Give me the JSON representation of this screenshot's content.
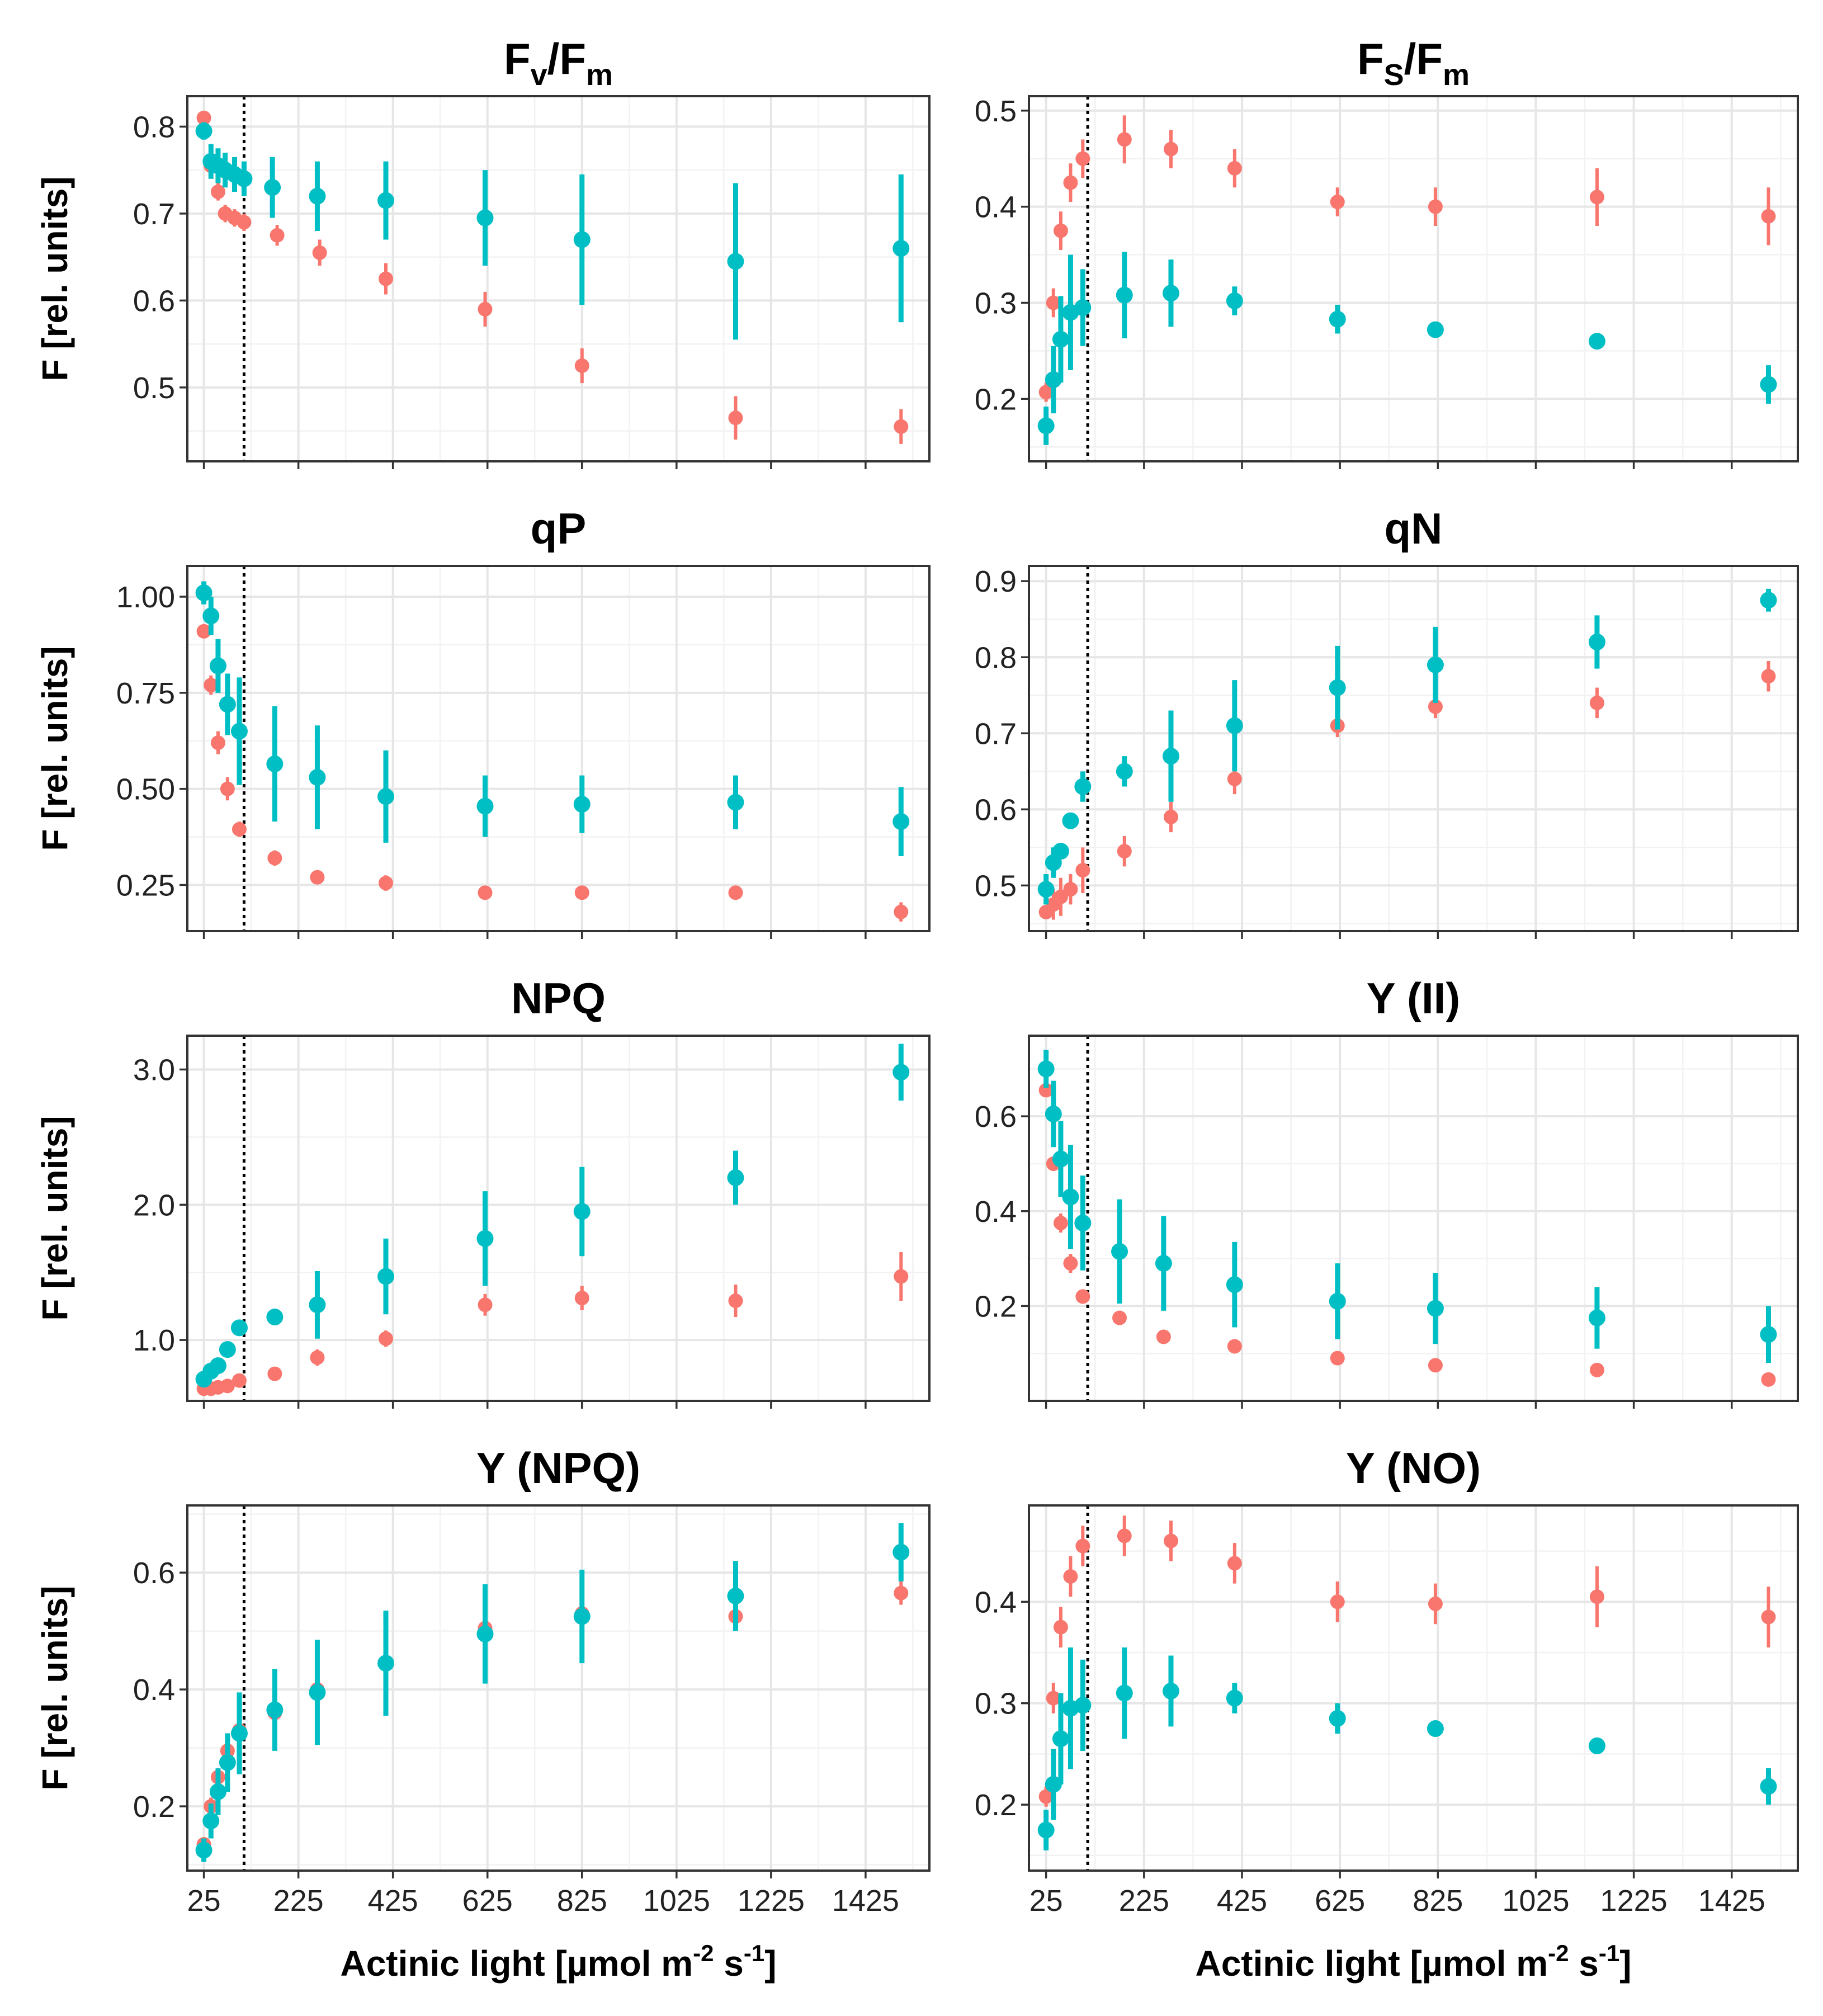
{
  "figure": {
    "ylabel": "F [rel. units]",
    "xlabel": "Actinic light [µmol m",
    "xlabel_sup1": "-2",
    "xlabel_mid": " s",
    "xlabel_sup2": "-1",
    "xlabel_end": "]",
    "x_ticks": [
      "25",
      "225",
      "425",
      "625",
      "825",
      "1025",
      "1225",
      "1425"
    ],
    "colors": {
      "series_a": "#F8766D",
      "series_b": "#00BFC4",
      "vline": "#000000"
    }
  },
  "chart_data": [
    {
      "type": "scatter",
      "title": "Fv/Fm",
      "title_main": "F",
      "title_sub1": "v",
      "title_mid": "/F",
      "title_sub2": "m",
      "xlim": [
        -10,
        1560
      ],
      "ylim": [
        0.415,
        0.835
      ],
      "yticks": [
        0.5,
        0.6,
        0.7,
        0.8
      ],
      "ytick_labels": [
        "0.5",
        "0.6",
        "0.7",
        "0.8"
      ],
      "vline": 110,
      "series": [
        {
          "color": "#F8766D",
          "x": [
            25,
            40,
            55,
            70,
            90,
            110,
            180,
            270,
            410,
            620,
            825,
            1150,
            1500
          ],
          "y": [
            0.81,
            0.755,
            0.725,
            0.7,
            0.695,
            0.69,
            0.675,
            0.655,
            0.625,
            0.59,
            0.525,
            0.465,
            0.455
          ],
          "err": [
            0.008,
            0.01,
            0.01,
            0.01,
            0.01,
            0.01,
            0.012,
            0.015,
            0.018,
            0.02,
            0.02,
            0.025,
            0.02
          ]
        },
        {
          "color": "#00BFC4",
          "x": [
            25,
            40,
            55,
            70,
            90,
            110,
            170,
            265,
            410,
            620,
            825,
            1150,
            1500
          ],
          "y": [
            0.795,
            0.76,
            0.755,
            0.75,
            0.745,
            0.74,
            0.73,
            0.72,
            0.715,
            0.695,
            0.67,
            0.645,
            0.66
          ],
          "err": [
            0.01,
            0.02,
            0.02,
            0.02,
            0.02,
            0.02,
            0.035,
            0.04,
            0.045,
            0.055,
            0.075,
            0.09,
            0.085
          ]
        }
      ]
    },
    {
      "type": "scatter",
      "title": "Fs/Fm",
      "title_main": "F",
      "title_sub1": "S",
      "title_mid": "/F",
      "title_sub2": "m",
      "xlim": [
        -10,
        1560
      ],
      "ylim": [
        0.135,
        0.515
      ],
      "yticks": [
        0.2,
        0.3,
        0.4,
        0.5
      ],
      "ytick_labels": [
        "0.2",
        "0.3",
        "0.4",
        "0.5"
      ],
      "vline": 110,
      "series": [
        {
          "color": "#F8766D",
          "x": [
            25,
            40,
            55,
            75,
            100,
            185,
            280,
            410,
            620,
            820,
            1150,
            1500
          ],
          "y": [
            0.207,
            0.3,
            0.375,
            0.425,
            0.45,
            0.47,
            0.46,
            0.44,
            0.405,
            0.4,
            0.41,
            0.39
          ],
          "err": [
            0.01,
            0.015,
            0.02,
            0.02,
            0.02,
            0.025,
            0.02,
            0.02,
            0.015,
            0.02,
            0.03,
            0.03
          ]
        },
        {
          "color": "#00BFC4",
          "x": [
            25,
            40,
            55,
            75,
            100,
            185,
            280,
            410,
            620,
            820,
            1150,
            1500
          ],
          "y": [
            0.172,
            0.22,
            0.262,
            0.29,
            0.295,
            0.308,
            0.31,
            0.302,
            0.283,
            0.272,
            0.26,
            0.215
          ],
          "err": [
            0.02,
            0.035,
            0.045,
            0.06,
            0.04,
            0.045,
            0.035,
            0.015,
            0.015,
            0.008,
            0.008,
            0.02
          ]
        }
      ]
    },
    {
      "type": "scatter",
      "title": "qP",
      "xlim": [
        -10,
        1560
      ],
      "ylim": [
        0.13,
        1.08
      ],
      "yticks": [
        0.25,
        0.5,
        0.75,
        1.0
      ],
      "ytick_labels": [
        "0.25",
        "0.50",
        "0.75",
        "1.00"
      ],
      "vline": 110,
      "series": [
        {
          "color": "#F8766D",
          "x": [
            25,
            40,
            55,
            75,
            100,
            175,
            265,
            410,
            620,
            825,
            1150,
            1500
          ],
          "y": [
            0.91,
            0.77,
            0.62,
            0.5,
            0.395,
            0.32,
            0.27,
            0.255,
            0.23,
            0.23,
            0.23,
            0.18
          ],
          "err": [
            0.015,
            0.025,
            0.03,
            0.03,
            0.02,
            0.02,
            0.015,
            0.02,
            0.015,
            0.015,
            0.015,
            0.025
          ]
        },
        {
          "color": "#00BFC4",
          "x": [
            25,
            40,
            55,
            75,
            100,
            175,
            265,
            410,
            620,
            825,
            1150,
            1500
          ],
          "y": [
            1.01,
            0.95,
            0.82,
            0.72,
            0.65,
            0.565,
            0.53,
            0.48,
            0.455,
            0.46,
            0.465,
            0.415
          ],
          "err": [
            0.03,
            0.05,
            0.07,
            0.08,
            0.14,
            0.15,
            0.135,
            0.12,
            0.08,
            0.075,
            0.07,
            0.09
          ]
        }
      ]
    },
    {
      "type": "scatter",
      "title": "qN",
      "xlim": [
        -10,
        1560
      ],
      "ylim": [
        0.44,
        0.92
      ],
      "yticks": [
        0.5,
        0.6,
        0.7,
        0.8,
        0.9
      ],
      "ytick_labels": [
        "0.5",
        "0.6",
        "0.7",
        "0.8",
        "0.9"
      ],
      "vline": 110,
      "series": [
        {
          "color": "#F8766D",
          "x": [
            25,
            40,
            55,
            75,
            100,
            185,
            280,
            410,
            620,
            820,
            1150,
            1500
          ],
          "y": [
            0.465,
            0.475,
            0.485,
            0.495,
            0.52,
            0.545,
            0.59,
            0.64,
            0.71,
            0.735,
            0.74,
            0.775
          ],
          "err": [
            0.008,
            0.02,
            0.025,
            0.02,
            0.03,
            0.02,
            0.02,
            0.02,
            0.015,
            0.015,
            0.02,
            0.02
          ]
        },
        {
          "color": "#00BFC4",
          "x": [
            25,
            40,
            55,
            75,
            100,
            185,
            280,
            410,
            620,
            820,
            1150,
            1500
          ],
          "y": [
            0.495,
            0.53,
            0.545,
            0.585,
            0.63,
            0.65,
            0.67,
            0.71,
            0.76,
            0.79,
            0.82,
            0.875
          ],
          "err": [
            0.02,
            0.02,
            0.01,
            0.01,
            0.02,
            0.02,
            0.06,
            0.06,
            0.055,
            0.05,
            0.035,
            0.015
          ]
        }
      ]
    },
    {
      "type": "scatter",
      "title": "NPQ",
      "xlim": [
        -10,
        1560
      ],
      "ylim": [
        0.55,
        3.25
      ],
      "yticks": [
        1.0,
        2.0,
        3.0
      ],
      "ytick_labels": [
        "1.0",
        "2.0",
        "3.0"
      ],
      "vline": 110,
      "series": [
        {
          "color": "#F8766D",
          "x": [
            25,
            40,
            55,
            75,
            100,
            175,
            265,
            410,
            620,
            825,
            1150,
            1500
          ],
          "y": [
            0.64,
            0.64,
            0.65,
            0.66,
            0.7,
            0.75,
            0.87,
            1.01,
            1.26,
            1.31,
            1.29,
            1.47
          ],
          "err": [
            0.02,
            0.02,
            0.02,
            0.03,
            0.04,
            0.05,
            0.06,
            0.06,
            0.08,
            0.09,
            0.12,
            0.18
          ]
        },
        {
          "color": "#00BFC4",
          "x": [
            25,
            40,
            55,
            75,
            100,
            175,
            265,
            410,
            620,
            825,
            1150,
            1500
          ],
          "y": [
            0.71,
            0.77,
            0.81,
            0.93,
            1.09,
            1.17,
            1.26,
            1.47,
            1.75,
            1.95,
            2.2,
            2.98
          ],
          "err": [
            0.03,
            0.04,
            0.04,
            0.05,
            0.05,
            0.06,
            0.25,
            0.28,
            0.35,
            0.33,
            0.2,
            0.21
          ]
        }
      ]
    },
    {
      "type": "scatter",
      "title": "Y (II)",
      "xlim": [
        -10,
        1560
      ],
      "ylim": [
        0.0,
        0.77
      ],
      "yticks": [
        0.2,
        0.4,
        0.6
      ],
      "ytick_labels": [
        "0.2",
        "0.4",
        "0.6"
      ],
      "vline": 110,
      "series": [
        {
          "color": "#F8766D",
          "x": [
            25,
            40,
            55,
            75,
            100,
            175,
            265,
            410,
            620,
            820,
            1150,
            1500
          ],
          "y": [
            0.655,
            0.5,
            0.375,
            0.29,
            0.22,
            0.175,
            0.135,
            0.115,
            0.09,
            0.075,
            0.065,
            0.045
          ],
          "err": [
            0.01,
            0.015,
            0.02,
            0.02,
            0.015,
            0.015,
            0.012,
            0.012,
            0.012,
            0.012,
            0.01,
            0.01
          ]
        },
        {
          "color": "#00BFC4",
          "x": [
            25,
            40,
            55,
            75,
            100,
            175,
            265,
            410,
            620,
            820,
            1150,
            1500
          ],
          "y": [
            0.7,
            0.605,
            0.51,
            0.43,
            0.375,
            0.315,
            0.29,
            0.245,
            0.21,
            0.195,
            0.175,
            0.14
          ],
          "err": [
            0.04,
            0.07,
            0.08,
            0.11,
            0.1,
            0.11,
            0.1,
            0.09,
            0.08,
            0.075,
            0.065,
            0.06
          ]
        }
      ]
    },
    {
      "type": "scatter",
      "title": "Y (NPQ)",
      "xlim": [
        -10,
        1560
      ],
      "ylim": [
        0.09,
        0.715
      ],
      "yticks": [
        0.2,
        0.4,
        0.6
      ],
      "ytick_labels": [
        "0.2",
        "0.4",
        "0.6"
      ],
      "vline": 110,
      "series": [
        {
          "color": "#F8766D",
          "x": [
            25,
            40,
            55,
            75,
            100,
            175,
            265,
            410,
            620,
            825,
            1150,
            1500
          ],
          "y": [
            0.135,
            0.2,
            0.25,
            0.295,
            0.33,
            0.36,
            0.4,
            0.445,
            0.505,
            0.53,
            0.525,
            0.565
          ],
          "err": [
            0.01,
            0.015,
            0.015,
            0.02,
            0.02,
            0.02,
            0.02,
            0.02,
            0.02,
            0.02,
            0.02,
            0.02
          ]
        },
        {
          "color": "#00BFC4",
          "x": [
            25,
            40,
            55,
            75,
            100,
            175,
            265,
            410,
            620,
            825,
            1150,
            1500
          ],
          "y": [
            0.125,
            0.175,
            0.225,
            0.275,
            0.325,
            0.365,
            0.395,
            0.445,
            0.495,
            0.525,
            0.56,
            0.635
          ],
          "err": [
            0.02,
            0.03,
            0.04,
            0.05,
            0.07,
            0.07,
            0.09,
            0.09,
            0.085,
            0.08,
            0.06,
            0.05
          ]
        }
      ]
    },
    {
      "type": "scatter",
      "title": "Y (NO)",
      "xlim": [
        -10,
        1560
      ],
      "ylim": [
        0.135,
        0.495
      ],
      "yticks": [
        0.2,
        0.3,
        0.4
      ],
      "ytick_labels": [
        "0.2",
        "0.3",
        "0.4"
      ],
      "vline": 110,
      "series": [
        {
          "color": "#F8766D",
          "x": [
            25,
            40,
            55,
            75,
            100,
            185,
            280,
            410,
            620,
            820,
            1150,
            1500
          ],
          "y": [
            0.208,
            0.305,
            0.375,
            0.425,
            0.455,
            0.465,
            0.46,
            0.438,
            0.4,
            0.398,
            0.405,
            0.385
          ],
          "err": [
            0.01,
            0.015,
            0.02,
            0.02,
            0.02,
            0.02,
            0.02,
            0.02,
            0.02,
            0.02,
            0.03,
            0.03
          ]
        },
        {
          "color": "#00BFC4",
          "x": [
            25,
            40,
            55,
            75,
            100,
            185,
            280,
            410,
            620,
            820,
            1150,
            1500
          ],
          "y": [
            0.175,
            0.22,
            0.265,
            0.295,
            0.298,
            0.31,
            0.312,
            0.305,
            0.285,
            0.275,
            0.258,
            0.218
          ],
          "err": [
            0.02,
            0.035,
            0.045,
            0.06,
            0.045,
            0.045,
            0.035,
            0.015,
            0.015,
            0.008,
            0.008,
            0.018
          ]
        }
      ]
    }
  ]
}
